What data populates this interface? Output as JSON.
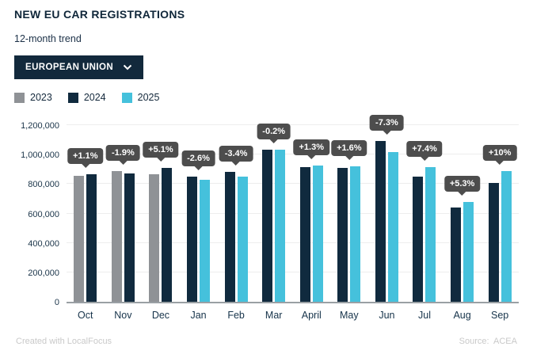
{
  "header": {
    "title": "NEW EU CAR REGISTRATIONS",
    "subtitle": "12-month trend",
    "region_selector": {
      "label": "EUROPEAN UNION",
      "icon": "chevron-down-icon"
    }
  },
  "legend": [
    {
      "label": "2023",
      "color": "#8f9296"
    },
    {
      "label": "2024",
      "color": "#102a3e"
    },
    {
      "label": "2025",
      "color": "#45c1dc"
    }
  ],
  "chart_data": {
    "type": "bar",
    "title": "NEW EU CAR REGISTRATIONS",
    "subtitle": "12-month trend",
    "categories": [
      "Oct",
      "Nov",
      "Dec",
      "Jan",
      "Feb",
      "Mar",
      "April",
      "May",
      "Jun",
      "Jul",
      "Aug",
      "Sep"
    ],
    "series": [
      {
        "name": "2023",
        "color": "#8f9296",
        "values": [
          858000,
          888000,
          866000,
          null,
          null,
          null,
          null,
          null,
          null,
          null,
          null,
          null
        ]
      },
      {
        "name": "2024",
        "color": "#102a3e",
        "values": [
          868000,
          871000,
          910000,
          853000,
          882000,
          1035000,
          913000,
          908000,
          1095000,
          850000,
          642000,
          810000
        ]
      },
      {
        "name": "2025",
        "color": "#45c1dc",
        "values": [
          null,
          null,
          null,
          831000,
          852000,
          1033000,
          925000,
          922000,
          1015000,
          913000,
          676000,
          890000
        ]
      }
    ],
    "labels": [
      "+1.1%",
      "-1.9%",
      "+5.1%",
      "-2.6%",
      "-3.4%",
      "-0.2%",
      "+1.3%",
      "+1.6%",
      "-7.3%",
      "+7.4%",
      "+5.3%",
      "+10%"
    ],
    "xlabel": "",
    "ylabel": "",
    "ylim": [
      0,
      1200000
    ],
    "ytick_step": 200000,
    "yticks": [
      "0",
      "200,000",
      "400,000",
      "600,000",
      "800,000",
      "1,000,000",
      "1,200,000"
    ],
    "grid": true,
    "legend_position": "top-left",
    "label_style": "dark-tooltip-above-tallest-bar"
  },
  "footer": {
    "left": "Created with LocalFocus",
    "right": "Source: ACEA"
  }
}
